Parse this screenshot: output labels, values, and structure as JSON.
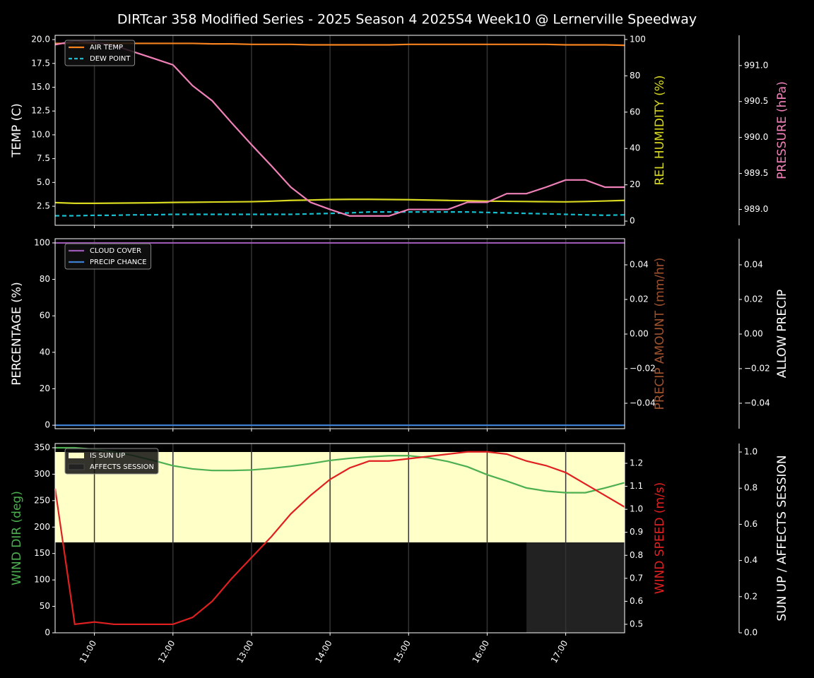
{
  "title": "DIRTcar 358 Modified Series - 2025 Season 4 2025S4 Week10 @ Lernerville Speedway",
  "chart_data": [
    {
      "type": "line",
      "ylabel": "TEMP (C)",
      "ylabel_color": "#ffffff",
      "ylim": [
        0.5,
        20.45
      ],
      "yticks": [
        2.5,
        {
          "value": 5,
          "label": "5.0"
        },
        7.5,
        {
          "value": 10,
          "label": "10.0"
        },
        12.5,
        {
          "value": 15,
          "label": "15.0"
        },
        17.5,
        {
          "value": 20,
          "label": "20.0"
        }
      ],
      "y2label": "REL HUMIDITY (%)",
      "y2label_color": "#d8d820",
      "y2lim": [
        -2.3,
        102.3
      ],
      "y2ticks": [
        0,
        20,
        40,
        60,
        80,
        100
      ],
      "y3label": "PRESSURE (hPa)",
      "y3label_color": "#f080b8",
      "y3lim": [
        988.78,
        991.42
      ],
      "y3ticks": [
        {
          "value": 989,
          "label": "989.0"
        },
        989.5,
        {
          "value": 990,
          "label": "990.0"
        },
        990.5,
        {
          "value": 991,
          "label": "991.0"
        }
      ],
      "legend": "upper left",
      "x": [
        "10:30",
        "10:45",
        "11:00",
        "11:15",
        "11:30",
        "11:45",
        "12:00",
        "12:15",
        "12:30",
        "12:45",
        "13:00",
        "13:15",
        "13:30",
        "13:45",
        "14:00",
        "14:15",
        "14:30",
        "14:45",
        "15:00",
        "15:15",
        "15:30",
        "15:45",
        "16:00",
        "16:15",
        "16:30",
        "16:45",
        "17:00",
        "17:15",
        "17:30",
        "17:45"
      ],
      "series": [
        {
          "name": "AIR TEMP",
          "color": "#f5821f",
          "values": [
            19.6,
            19.6,
            19.6,
            19.6,
            19.6,
            19.6,
            19.6,
            19.6,
            19.55,
            19.55,
            19.5,
            19.5,
            19.5,
            19.45,
            19.45,
            19.45,
            19.45,
            19.45,
            19.5,
            19.5,
            19.5,
            19.5,
            19.5,
            19.5,
            19.5,
            19.5,
            19.45,
            19.45,
            19.45,
            19.4
          ]
        },
        {
          "name": "DEW POINT",
          "color": "#17becf",
          "dash": true,
          "values": [
            1.5,
            1.5,
            1.55,
            1.55,
            1.6,
            1.6,
            1.65,
            1.65,
            1.65,
            1.65,
            1.65,
            1.65,
            1.65,
            1.7,
            1.75,
            1.8,
            1.9,
            1.9,
            1.9,
            1.9,
            1.9,
            1.9,
            1.85,
            1.8,
            1.75,
            1.7,
            1.65,
            1.6,
            1.55,
            1.6
          ]
        },
        {
          "color": "#d8d820",
          "axis": "y2",
          "values": [
            10.2,
            9.8,
            9.8,
            9.9,
            10,
            10.1,
            10.3,
            10.4,
            10.5,
            10.6,
            10.7,
            11,
            11.4,
            11.6,
            11.9,
            12,
            12,
            11.9,
            11.8,
            11.6,
            11.4,
            11.2,
            11,
            10.9,
            10.8,
            10.7,
            10.6,
            10.8,
            11.1,
            11.4
          ]
        },
        {
          "color": "#f080b8",
          "axis": "y3",
          "values": [
            991.29,
            991.34,
            991.32,
            991.28,
            991.19,
            991.1,
            991.01,
            990.72,
            990.51,
            990.2,
            989.9,
            989.61,
            989.31,
            989.1,
            989.0,
            988.91,
            988.91,
            988.91,
            989.0,
            989.0,
            989.0,
            989.1,
            989.1,
            989.22,
            989.22,
            989.31,
            989.41,
            989.41,
            989.31,
            989.31
          ]
        }
      ]
    },
    {
      "type": "line",
      "ylabel": "PERCENTAGE (%)",
      "ylabel_color": "#ffffff",
      "ylim": [
        -1.9,
        102.3
      ],
      "yticks": [
        0,
        20,
        40,
        60,
        80,
        100
      ],
      "y2label": "PRECIP AMOUNT (mm/hr)",
      "y2label_color": "#a0522d",
      "y2lim": [
        -0.0547,
        0.0551
      ],
      "y2ticks": [
        {
          "value": -0.04,
          "label": "−0.04"
        },
        {
          "value": -0.02,
          "label": "−0.02"
        },
        {
          "value": 0,
          "label": "0.00"
        },
        0.02,
        0.04
      ],
      "y3label": "ALLOW PRECIP",
      "y3label_color": "#ffffff",
      "y3lim": [
        -0.0547,
        0.0551
      ],
      "y3ticks": [
        {
          "value": -0.04,
          "label": "−0.04"
        },
        {
          "value": -0.02,
          "label": "−0.02"
        },
        {
          "value": 0,
          "label": "0.00"
        },
        0.02,
        0.04
      ],
      "legend": "upper left",
      "x": [
        "10:30",
        "10:45",
        "11:00",
        "11:15",
        "11:30",
        "11:45",
        "12:00",
        "12:15",
        "12:30",
        "12:45",
        "13:00",
        "13:15",
        "13:30",
        "13:45",
        "14:00",
        "14:15",
        "14:30",
        "14:45",
        "15:00",
        "15:15",
        "15:30",
        "15:45",
        "16:00",
        "16:15",
        "16:30",
        "16:45",
        "17:00",
        "17:15",
        "17:30",
        "17:45"
      ],
      "series": [
        {
          "name": "CLOUD COVER",
          "color": "#9b59b6",
          "values": [
            100,
            100,
            100,
            100,
            100,
            100,
            100,
            100,
            100,
            100,
            100,
            100,
            100,
            100,
            100,
            100,
            100,
            100,
            100,
            100,
            100,
            100,
            100,
            100,
            100,
            100,
            100,
            100,
            100,
            100
          ]
        },
        {
          "name": "PRECIP CHANCE",
          "color": "#3f7fd0",
          "values": [
            0,
            0,
            0,
            0,
            0,
            0,
            0,
            0,
            0,
            0,
            0,
            0,
            0,
            0,
            0,
            0,
            0,
            0,
            0,
            0,
            0,
            0,
            0,
            0,
            0,
            0,
            0,
            0,
            0,
            0
          ]
        }
      ]
    },
    {
      "type": "line",
      "ylabel": "WIND DIR (deg)",
      "ylabel_color": "#4caf50",
      "ylim": [
        0,
        358
      ],
      "yticks": [
        0,
        50,
        100,
        150,
        200,
        250,
        300,
        350
      ],
      "y2label": "WIND SPEED (m/s)",
      "y2label_color": "#e02020",
      "y2lim": [
        0.463,
        1.286
      ],
      "y2ticks": [
        0.5,
        0.6,
        0.7,
        0.8,
        0.9,
        {
          "value": 1,
          "label": "1.0"
        },
        1.1,
        1.2
      ],
      "y3label": "SUN UP / AFFECTS SESSION",
      "y3label_color": "#ffffff",
      "y3lim": [
        0,
        1.047
      ],
      "y3ticks": [
        {
          "value": 0,
          "label": "0.0"
        },
        0.2,
        0.4,
        0.6,
        0.8,
        {
          "value": 1,
          "label": "1.0"
        }
      ],
      "legend": "upper left",
      "x": [
        "10:30",
        "10:45",
        "11:00",
        "11:15",
        "11:30",
        "11:45",
        "12:00",
        "12:15",
        "12:30",
        "12:45",
        "13:00",
        "13:15",
        "13:30",
        "13:45",
        "14:00",
        "14:15",
        "14:30",
        "14:45",
        "15:00",
        "15:15",
        "15:30",
        "15:45",
        "16:00",
        "16:15",
        "16:30",
        "16:45",
        "17:00",
        "17:15",
        "17:30",
        "17:45"
      ],
      "xlim": [
        "10:30",
        "17:45"
      ],
      "xticks": [
        "11:00",
        "12:00",
        "13:00",
        "14:00",
        "15:00",
        "16:00",
        "17:00"
      ],
      "series": [
        {
          "name": "IS SUN UP",
          "type": "area",
          "base": 0.5,
          "color": "#ffffc8",
          "axis": "y3",
          "values": [
            1,
            1,
            1,
            1,
            1,
            1,
            1,
            1,
            1,
            1,
            1,
            1,
            1,
            1,
            1,
            1,
            1,
            1,
            1,
            1,
            1,
            1,
            1,
            1,
            1,
            1,
            1,
            1,
            1,
            1
          ]
        },
        {
          "name": "AFFECTS SESSION",
          "type": "area",
          "color": "#222222",
          "axis": "y3",
          "values": [
            null,
            null,
            null,
            null,
            null,
            null,
            null,
            null,
            null,
            null,
            null,
            null,
            null,
            null,
            null,
            null,
            null,
            null,
            null,
            null,
            null,
            null,
            null,
            null,
            0.5,
            0.5,
            0.5,
            0.5,
            0.5,
            0.5
          ]
        },
        {
          "color": "#4caf50",
          "values": [
            350,
            350,
            347,
            342,
            335,
            326,
            316,
            310,
            307,
            307,
            308,
            311,
            315,
            320,
            326,
            330,
            333,
            335,
            335,
            331,
            324,
            314,
            299,
            287,
            274,
            268,
            265,
            265,
            274,
            284
          ]
        },
        {
          "color": "#e02020",
          "axis": "y2",
          "values": [
            1.09,
            0.5,
            0.51,
            0.5,
            0.5,
            0.5,
            0.5,
            0.53,
            0.6,
            0.7,
            0.79,
            0.88,
            0.98,
            1.06,
            1.13,
            1.18,
            1.21,
            1.21,
            1.22,
            1.23,
            1.24,
            1.25,
            1.25,
            1.24,
            1.21,
            1.19,
            1.16,
            1.11,
            1.06,
            1.01
          ]
        }
      ]
    }
  ]
}
